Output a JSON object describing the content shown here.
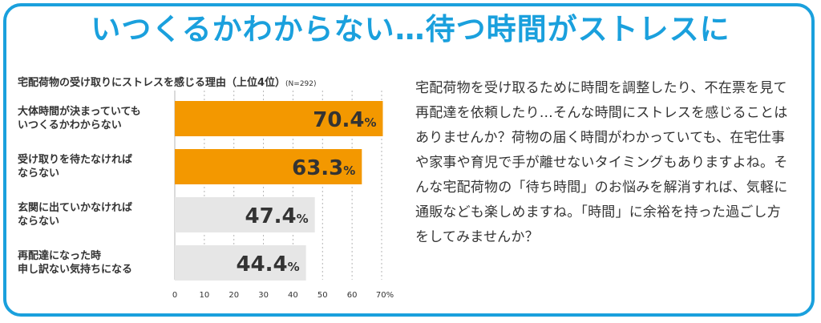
{
  "headline": "いつくるかわからない…待つ時間がストレスに",
  "chart_title": "宅配荷物の受け取りにストレスを感じる理由（上位4位）",
  "chart_note": "(N=292)",
  "body_text": "宅配荷物を受け取るために時間を調整したり、不在票を見て再配達を依頼したり…そんな時間にストレスを感じることはありませんか？荷物の届く時間がわかっていても、在宅仕事や家事や育児で手が離せないタイミングもありますよね。そんな宅配荷物の「待ち時間」のお悩みを解消すれば、気軽に通販なども楽しめますね。「時間」に余裕を持った過ごし方をしてみませんか？",
  "colors": {
    "frame": "#1aa0dd",
    "headline": "#1aa0dd",
    "highlight": "#fff24a",
    "bar_top": "#f39800",
    "bar_other": "#e6e6e6"
  },
  "chart_data": {
    "type": "bar",
    "orientation": "horizontal",
    "title": "宅配荷物の受け取りにストレスを感じる理由（上位4位）",
    "categories": [
      "大体時間が決まっていても いつくるかわからない",
      "受け取りを待たなければ ならない",
      "玄関に出ていかなければ ならない",
      "再配達になった時 申し訳ない気持ちになる"
    ],
    "category_lines": [
      [
        "大体時間が決まっていても",
        "いつくるかわからない"
      ],
      [
        "受け取りを待たなければ",
        "ならない"
      ],
      [
        "玄関に出ていかなければ",
        "ならない"
      ],
      [
        "再配達になった時",
        "申し訳ない気持ちになる"
      ]
    ],
    "values": [
      70.4,
      63.3,
      47.4,
      44.4
    ],
    "value_labels": [
      "70.4",
      "63.3",
      "47.4",
      "44.4"
    ],
    "unit": "%",
    "highlighted": [
      true,
      true,
      false,
      false
    ],
    "xlim": [
      0,
      70
    ],
    "xticks": [
      "0",
      "10",
      "20",
      "30",
      "40",
      "50",
      "60",
      "70%"
    ],
    "xtick_values": [
      0,
      10,
      20,
      30,
      40,
      50,
      60,
      70
    ],
    "grid": true
  }
}
